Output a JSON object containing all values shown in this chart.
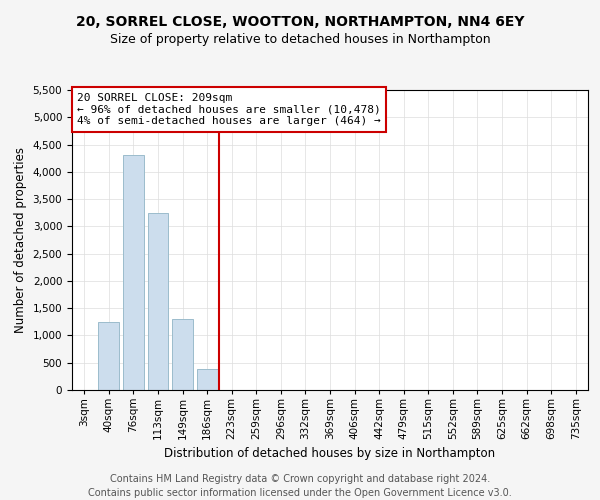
{
  "title": "20, SORREL CLOSE, WOOTTON, NORTHAMPTON, NN4 6EY",
  "subtitle": "Size of property relative to detached houses in Northampton",
  "xlabel": "Distribution of detached houses by size in Northampton",
  "ylabel": "Number of detached properties",
  "categories": [
    "3sqm",
    "40sqm",
    "76sqm",
    "113sqm",
    "149sqm",
    "186sqm",
    "223sqm",
    "259sqm",
    "296sqm",
    "332sqm",
    "369sqm",
    "406sqm",
    "442sqm",
    "479sqm",
    "515sqm",
    "552sqm",
    "589sqm",
    "625sqm",
    "662sqm",
    "698sqm",
    "735sqm"
  ],
  "values": [
    0,
    1250,
    4300,
    3250,
    1300,
    380,
    0,
    0,
    0,
    0,
    0,
    0,
    0,
    0,
    0,
    0,
    0,
    0,
    0,
    0,
    0
  ],
  "bar_color": "#ccdded",
  "bar_edge_color": "#9bbccc",
  "vline_x_index": 6,
  "annotation_text_line1": "20 SORREL CLOSE: 209sqm",
  "annotation_text_line2": "← 96% of detached houses are smaller (10,478)",
  "annotation_text_line3": "4% of semi-detached houses are larger (464) →",
  "annotation_box_facecolor": "#ffffff",
  "annotation_box_edgecolor": "#cc0000",
  "vline_color": "#cc0000",
  "ylim": [
    0,
    5500
  ],
  "yticks": [
    0,
    500,
    1000,
    1500,
    2000,
    2500,
    3000,
    3500,
    4000,
    4500,
    5000,
    5500
  ],
  "figure_facecolor": "#f5f5f5",
  "axes_facecolor": "#ffffff",
  "title_fontsize": 10,
  "subtitle_fontsize": 9,
  "xlabel_fontsize": 8.5,
  "ylabel_fontsize": 8.5,
  "tick_fontsize": 7.5,
  "annotation_fontsize": 8,
  "footnote_fontsize": 7,
  "footnote": "Contains HM Land Registry data © Crown copyright and database right 2024.\nContains public sector information licensed under the Open Government Licence v3.0.",
  "grid_color": "#dddddd"
}
